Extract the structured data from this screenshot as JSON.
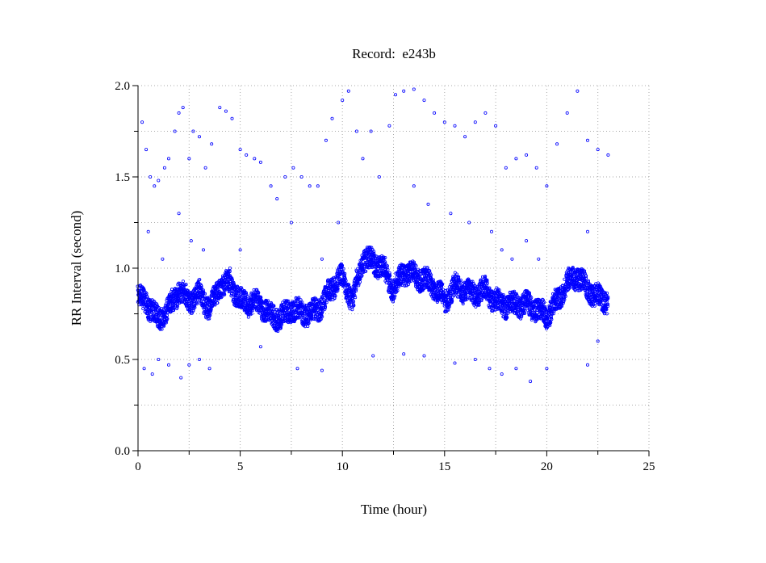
{
  "chart_data": {
    "type": "scatter",
    "title": "Record:  e243b",
    "xlabel": "Time (hour)",
    "ylabel": "RR Interval (second)",
    "xlim": [
      0,
      25
    ],
    "ylim": [
      0,
      2.0
    ],
    "xticks": [
      "0",
      "5",
      "10",
      "15",
      "20",
      "25"
    ],
    "yticks": [
      "0.0",
      "0.5",
      "1.0",
      "1.5",
      "2.0"
    ],
    "grid": true,
    "marker_color": "#0000ff",
    "main_band": [
      [
        0.0,
        0.85
      ],
      [
        0.5,
        0.8
      ],
      [
        1.0,
        0.72
      ],
      [
        1.5,
        0.78
      ],
      [
        2.0,
        0.88
      ],
      [
        2.5,
        0.82
      ],
      [
        3.0,
        0.86
      ],
      [
        3.5,
        0.78
      ],
      [
        4.0,
        0.9
      ],
      [
        4.5,
        0.92
      ],
      [
        5.0,
        0.82
      ],
      [
        5.5,
        0.81
      ],
      [
        6.0,
        0.8
      ],
      [
        6.5,
        0.74
      ],
      [
        7.0,
        0.73
      ],
      [
        7.5,
        0.78
      ],
      [
        8.0,
        0.76
      ],
      [
        8.5,
        0.75
      ],
      [
        9.0,
        0.8
      ],
      [
        9.5,
        0.9
      ],
      [
        10.0,
        0.95
      ],
      [
        10.5,
        0.82
      ],
      [
        11.0,
        1.05
      ],
      [
        11.5,
        1.04
      ],
      [
        12.0,
        1.0
      ],
      [
        12.5,
        0.88
      ],
      [
        13.0,
        0.98
      ],
      [
        13.5,
        0.96
      ],
      [
        14.0,
        0.94
      ],
      [
        14.5,
        0.9
      ],
      [
        15.0,
        0.82
      ],
      [
        15.5,
        0.9
      ],
      [
        16.0,
        0.88
      ],
      [
        16.5,
        0.86
      ],
      [
        17.0,
        0.88
      ],
      [
        17.5,
        0.82
      ],
      [
        18.0,
        0.8
      ],
      [
        18.5,
        0.8
      ],
      [
        19.0,
        0.8
      ],
      [
        19.5,
        0.78
      ],
      [
        20.0,
        0.74
      ],
      [
        20.5,
        0.82
      ],
      [
        21.0,
        0.92
      ],
      [
        21.5,
        0.96
      ],
      [
        22.0,
        0.88
      ],
      [
        22.5,
        0.84
      ],
      [
        23.0,
        0.82
      ]
    ],
    "outliers": [
      [
        0.2,
        1.8
      ],
      [
        0.4,
        1.65
      ],
      [
        0.6,
        1.5
      ],
      [
        0.8,
        1.45
      ],
      [
        1.0,
        1.48
      ],
      [
        1.3,
        1.55
      ],
      [
        1.5,
        1.6
      ],
      [
        1.8,
        1.75
      ],
      [
        2.0,
        1.85
      ],
      [
        2.2,
        1.88
      ],
      [
        2.5,
        1.6
      ],
      [
        2.7,
        1.75
      ],
      [
        3.0,
        1.72
      ],
      [
        3.3,
        1.55
      ],
      [
        3.6,
        1.68
      ],
      [
        4.0,
        1.88
      ],
      [
        4.3,
        1.86
      ],
      [
        4.6,
        1.82
      ],
      [
        5.0,
        1.65
      ],
      [
        5.3,
        1.62
      ],
      [
        5.7,
        1.6
      ],
      [
        6.0,
        1.58
      ],
      [
        6.5,
        1.45
      ],
      [
        6.8,
        1.38
      ],
      [
        7.2,
        1.5
      ],
      [
        7.6,
        1.55
      ],
      [
        8.0,
        1.5
      ],
      [
        8.4,
        1.45
      ],
      [
        8.8,
        1.45
      ],
      [
        9.2,
        1.7
      ],
      [
        9.5,
        1.82
      ],
      [
        10.0,
        1.92
      ],
      [
        10.3,
        1.97
      ],
      [
        10.7,
        1.75
      ],
      [
        11.0,
        1.6
      ],
      [
        11.4,
        1.75
      ],
      [
        12.3,
        1.78
      ],
      [
        12.6,
        1.95
      ],
      [
        13.0,
        1.97
      ],
      [
        13.5,
        1.98
      ],
      [
        14.0,
        1.92
      ],
      [
        14.5,
        1.85
      ],
      [
        15.0,
        1.8
      ],
      [
        15.5,
        1.78
      ],
      [
        16.0,
        1.72
      ],
      [
        16.5,
        1.8
      ],
      [
        17.0,
        1.85
      ],
      [
        17.5,
        1.78
      ],
      [
        18.0,
        1.55
      ],
      [
        18.5,
        1.6
      ],
      [
        19.0,
        1.62
      ],
      [
        19.5,
        1.55
      ],
      [
        20.0,
        1.45
      ],
      [
        20.5,
        1.68
      ],
      [
        21.0,
        1.85
      ],
      [
        21.5,
        1.97
      ],
      [
        22.0,
        1.7
      ],
      [
        22.5,
        1.65
      ],
      [
        23.0,
        1.62
      ],
      [
        0.3,
        0.45
      ],
      [
        0.7,
        0.42
      ],
      [
        1.0,
        0.5
      ],
      [
        1.5,
        0.47
      ],
      [
        2.1,
        0.4
      ],
      [
        2.5,
        0.47
      ],
      [
        3.0,
        0.5
      ],
      [
        3.5,
        0.45
      ],
      [
        6.0,
        0.57
      ],
      [
        7.8,
        0.45
      ],
      [
        9.0,
        0.44
      ],
      [
        11.5,
        0.52
      ],
      [
        13.0,
        0.53
      ],
      [
        14.0,
        0.52
      ],
      [
        15.5,
        0.48
      ],
      [
        16.5,
        0.5
      ],
      [
        17.2,
        0.45
      ],
      [
        17.8,
        0.42
      ],
      [
        18.5,
        0.45
      ],
      [
        19.2,
        0.38
      ],
      [
        20.0,
        0.45
      ],
      [
        22.0,
        0.47
      ],
      [
        22.5,
        0.6
      ],
      [
        0.5,
        1.2
      ],
      [
        1.2,
        1.05
      ],
      [
        2.0,
        1.3
      ],
      [
        2.6,
        1.15
      ],
      [
        3.2,
        1.1
      ],
      [
        4.5,
        1.0
      ],
      [
        5.0,
        1.1
      ],
      [
        7.5,
        1.25
      ],
      [
        9.0,
        1.05
      ],
      [
        9.8,
        1.25
      ],
      [
        11.8,
        1.5
      ],
      [
        13.5,
        1.45
      ],
      [
        14.2,
        1.35
      ],
      [
        15.3,
        1.3
      ],
      [
        16.2,
        1.25
      ],
      [
        17.3,
        1.2
      ],
      [
        17.8,
        1.1
      ],
      [
        18.3,
        1.05
      ],
      [
        19.0,
        1.15
      ],
      [
        19.6,
        1.05
      ],
      [
        22.0,
        1.2
      ]
    ]
  }
}
